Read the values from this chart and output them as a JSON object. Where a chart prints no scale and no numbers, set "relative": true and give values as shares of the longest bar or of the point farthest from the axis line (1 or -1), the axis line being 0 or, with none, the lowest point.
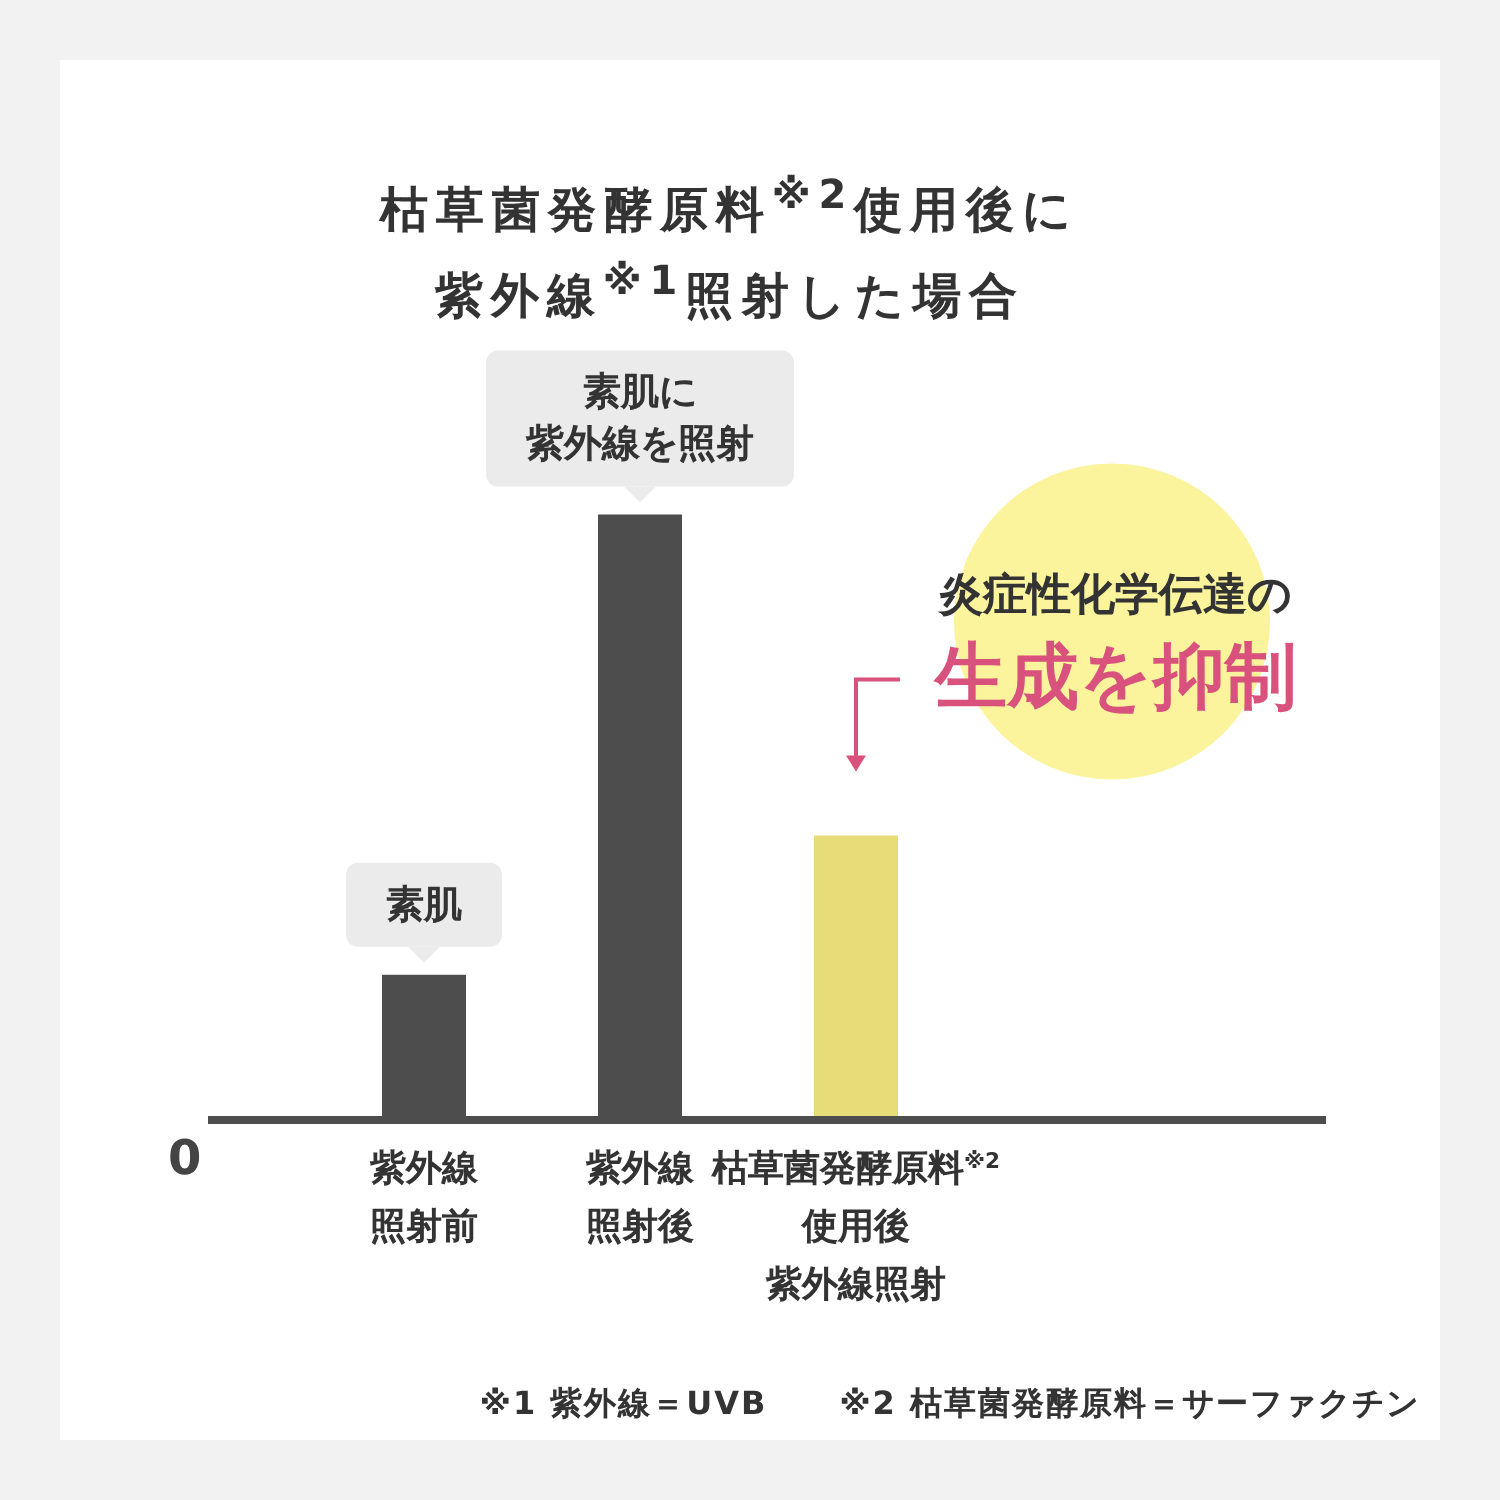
{
  "chart_data": {
    "type": "bar",
    "title": "枯草菌発酵原料$^{※2}$使用後に紫外線$^{※1}$照射した場合",
    "categories": [
      "紫外線照射前",
      "紫外線照射後",
      "枯草菌発酵原料$^{※2}$使用後紫外線照射"
    ],
    "values": [
      0.24,
      1,
      0.47
    ],
    "colors": [
      "#4d4d4d",
      "#4d4d4d",
      "#e6dc78"
    ],
    "relative": true,
    "annotations": [
      {
        "text": "素肌",
        "x": "紫外線照射前",
        "y": 0.24
      },
      {
        "text": "素肌に紫外線を照射",
        "x": "紫外線照射後",
        "y": 1
      },
      {
        "text": "炎症性化学伝達の生成を抑制",
        "x": "枯草菌発酵原料$^{※2}$使用後紫外線照射",
        "y": 0.47
      },
      "0",
      "※1 紫外線＝UVB",
      "※2 枯草菌発酵原料＝サーファクチン"
    ]
  }
}
